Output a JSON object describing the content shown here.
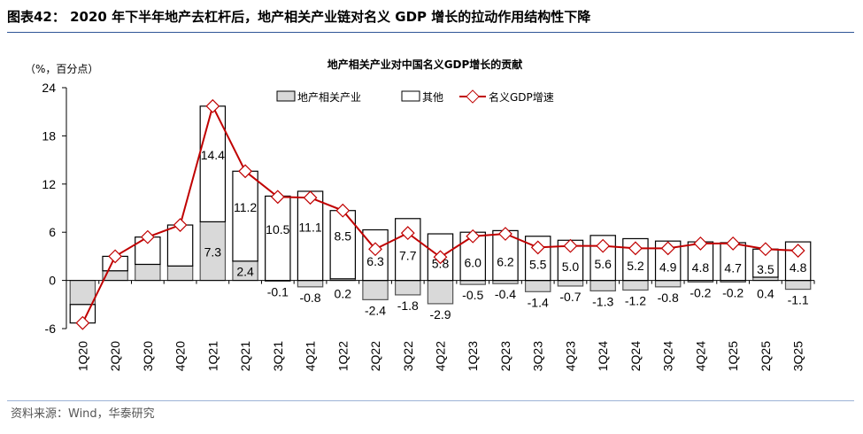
{
  "figure_title": "图表42：  2020 年下半年地产去杠杆后，地产相关产业链对名义 GDP 增长的拉动作用结构性下降",
  "source": "资料来源：Wind，华泰研究",
  "colors": {
    "real_estate": "#d9d9d9",
    "other": "#ffffff",
    "gdp": "#c00000",
    "title_rule": "#2f5597"
  },
  "chart_data": {
    "type": "bar",
    "stacked": true,
    "title": "地产相关产业对中国名义GDP增长的贡献",
    "unit_label": "（%，百分点）",
    "ylim": [
      -6,
      24
    ],
    "yticks": [
      -6,
      0,
      6,
      12,
      18,
      24
    ],
    "legend_position": "top",
    "categories": [
      "1Q20",
      "2Q20",
      "3Q20",
      "4Q20",
      "1Q21",
      "2Q21",
      "3Q21",
      "4Q21",
      "1Q22",
      "2Q22",
      "3Q22",
      "4Q22",
      "1Q23",
      "2Q23",
      "3Q23",
      "4Q23",
      "1Q24",
      "2Q24",
      "3Q24",
      "4Q24",
      "1Q25",
      "2Q25",
      "3Q25"
    ],
    "series": [
      {
        "name": "地产相关产业",
        "type": "bar",
        "values": [
          -3.0,
          1.2,
          2.0,
          1.8,
          7.3,
          2.4,
          -0.1,
          -0.8,
          0.2,
          -2.4,
          -1.8,
          -2.9,
          -0.5,
          -0.4,
          -1.4,
          -0.7,
          -1.3,
          -1.2,
          -0.8,
          -0.2,
          -0.2,
          0.4,
          -1.1
        ],
        "labels": [
          null,
          null,
          null,
          null,
          "7.3",
          "2.4",
          "-0.1",
          "-0.8",
          "0.2",
          "-2.4",
          "-1.8",
          "-2.9",
          "-0.5",
          "-0.4",
          "-1.4",
          "-0.7",
          "-1.3",
          "-1.2",
          "-0.8",
          "-0.2",
          "-0.2",
          "0.4",
          "-1.1"
        ]
      },
      {
        "name": "其他",
        "type": "bar",
        "values": [
          -2.3,
          1.8,
          3.4,
          5.1,
          14.4,
          11.2,
          10.5,
          11.1,
          8.5,
          6.3,
          7.7,
          5.8,
          6.0,
          6.2,
          5.5,
          5.0,
          5.6,
          5.2,
          4.9,
          4.8,
          4.7,
          3.5,
          4.8
        ],
        "labels": [
          null,
          null,
          null,
          null,
          "14.4",
          "11.2",
          "10.5",
          "11.1",
          "8.5",
          "6.3",
          "7.7",
          "5.8",
          "6.0",
          "6.2",
          "5.5",
          "5.0",
          "5.6",
          "5.2",
          "4.9",
          "4.8",
          "4.7",
          "3.5",
          "4.8"
        ]
      },
      {
        "name": "名义GDP增速",
        "type": "line",
        "values": [
          -5.3,
          3.0,
          5.4,
          6.9,
          21.7,
          13.6,
          10.4,
          10.3,
          8.7,
          3.9,
          5.9,
          2.9,
          5.5,
          5.8,
          4.1,
          4.3,
          4.3,
          4.0,
          4.0,
          4.6,
          4.6,
          3.9,
          3.7
        ]
      }
    ]
  }
}
